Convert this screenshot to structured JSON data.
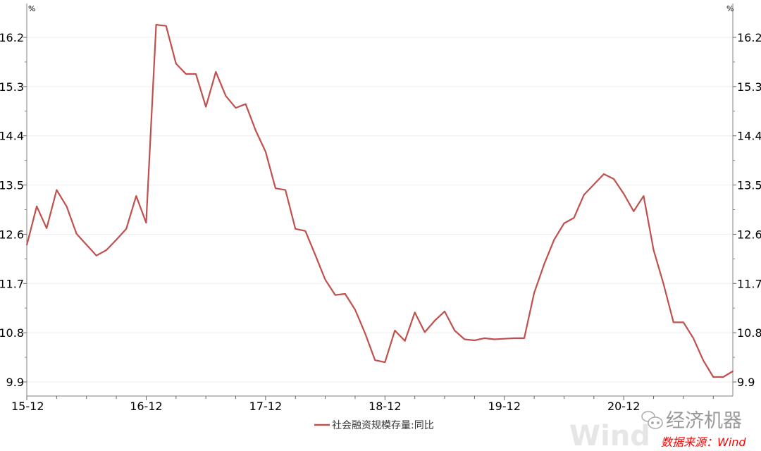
{
  "chart_data": {
    "type": "line",
    "title": "",
    "xlabel": "",
    "ylabel_left": "%",
    "ylabel_right": "%",
    "ylim": [
      9.9,
      16.2
    ],
    "yticks": [
      9.9,
      10.8,
      11.7,
      12.6,
      13.5,
      14.4,
      15.3,
      16.2
    ],
    "xtick_labels": [
      "15-12",
      "16-12",
      "17-12",
      "18-12",
      "19-12",
      "20-12"
    ],
    "grid": true,
    "legend": "bottom",
    "series": [
      {
        "name": "社会融资规模存量:同比",
        "color": "#c0504d",
        "x": [
          "2015-12",
          "2016-01",
          "2016-02",
          "2016-03",
          "2016-04",
          "2016-05",
          "2016-06",
          "2016-07",
          "2016-08",
          "2016-09",
          "2016-10",
          "2016-11",
          "2016-12",
          "2017-01",
          "2017-02",
          "2017-03",
          "2017-04",
          "2017-05",
          "2017-06",
          "2017-07",
          "2017-08",
          "2017-09",
          "2017-10",
          "2017-11",
          "2017-12",
          "2018-01",
          "2018-02",
          "2018-03",
          "2018-04",
          "2018-05",
          "2018-06",
          "2018-07",
          "2018-08",
          "2018-09",
          "2018-10",
          "2018-11",
          "2018-12",
          "2019-01",
          "2019-02",
          "2019-03",
          "2019-04",
          "2019-05",
          "2019-06",
          "2019-07",
          "2019-08",
          "2019-09",
          "2019-10",
          "2019-11",
          "2019-12",
          "2020-01",
          "2020-02",
          "2020-03",
          "2020-04",
          "2020-05",
          "2020-06",
          "2020-07",
          "2020-08",
          "2020-09",
          "2020-10",
          "2020-11",
          "2020-12",
          "2021-01",
          "2021-02",
          "2021-03",
          "2021-04",
          "2021-05",
          "2021-06",
          "2021-07",
          "2021-08",
          "2021-09",
          "2021-10",
          "2021-11"
        ],
        "values": [
          12.4,
          13.11,
          12.71,
          13.41,
          13.11,
          12.61,
          12.41,
          12.21,
          12.31,
          12.5,
          12.7,
          13.3,
          12.81,
          16.43,
          16.41,
          15.72,
          15.53,
          15.53,
          14.93,
          15.57,
          15.13,
          14.91,
          14.98,
          14.5,
          14.11,
          13.44,
          13.41,
          12.7,
          12.66,
          12.22,
          11.77,
          11.49,
          11.51,
          11.22,
          10.79,
          10.3,
          10.26,
          10.84,
          10.65,
          11.17,
          10.81,
          11.02,
          11.19,
          10.84,
          10.68,
          10.66,
          10.7,
          10.68,
          10.69,
          10.7,
          10.7,
          11.53,
          12.05,
          12.5,
          12.8,
          12.9,
          13.32,
          13.51,
          13.7,
          13.61,
          13.34,
          13.02,
          13.3,
          12.31,
          11.69,
          10.99,
          10.99,
          10.7,
          10.29,
          9.99,
          9.99,
          10.1
        ]
      }
    ]
  },
  "watermark": {
    "brand": "经济机器",
    "wind": "Wind"
  },
  "source": "数据来源：Wind",
  "colors": {
    "line": "#c0504d",
    "source_text": "#ff0000",
    "axis": "#808080",
    "grid": "#eeeeee"
  }
}
